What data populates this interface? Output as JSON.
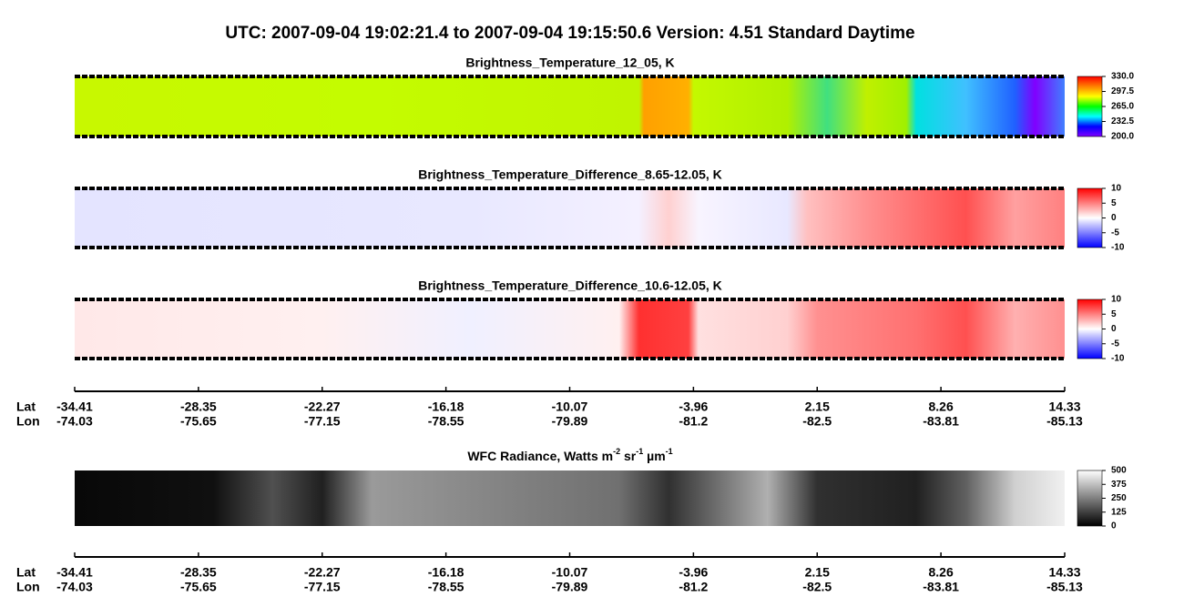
{
  "title": "UTC:  2007-09-04   19:02:21.4  to  2007-09-04   19:15:50.6    Version: 4.51  Standard Daytime",
  "chart_data": [
    {
      "type": "heatmap",
      "title": "Brightness_Temperature_12_05, K",
      "clim": [
        200,
        330
      ],
      "cticks": [
        {
          "value": 330,
          "label": "330.0"
        },
        297.5,
        {
          "value": 265,
          "label": "265.0"
        },
        232.5,
        {
          "value": 200,
          "label": "200.0"
        }
      ],
      "colormap": [
        "#8000ff",
        "#0000ff",
        "#00ffff",
        "#00ff00",
        "#ffff00",
        "#ff8000",
        "#ff0000"
      ]
    },
    {
      "type": "heatmap",
      "title": "Brightness_Temperature_Difference_8.65-12.05, K",
      "clim": [
        -10,
        10
      ],
      "cticks": [
        10,
        5,
        0,
        -5,
        -10
      ],
      "colormap": [
        "#0000ff",
        "#ffffff",
        "#ff0000"
      ]
    },
    {
      "type": "heatmap",
      "title": "Brightness_Temperature_Difference_10.6-12.05, K",
      "clim": [
        -10,
        10
      ],
      "cticks": [
        10,
        5,
        0,
        -5,
        -10
      ],
      "colormap": [
        "#0000ff",
        "#ffffff",
        "#ff0000"
      ]
    },
    {
      "type": "heatmap",
      "title_parts": [
        "WFC Radiance, Watts m",
        "-2",
        " sr",
        "-1",
        " µm",
        "-1"
      ],
      "clim": [
        0,
        500
      ],
      "cticks": [
        500,
        375,
        250,
        125,
        0
      ],
      "colormap": [
        "#000000",
        "#ffffff"
      ]
    }
  ],
  "axes": [
    {
      "rows": [
        {
          "label": "Lat",
          "ticks": [
            -34.41,
            -28.35,
            -22.27,
            -16.18,
            -10.07,
            -3.96,
            2.15,
            8.26,
            14.33
          ]
        },
        {
          "label": "Lon",
          "ticks": [
            -74.03,
            -75.65,
            -77.15,
            -78.55,
            -79.89,
            -81.2,
            -82.5,
            -83.81,
            -85.13
          ]
        }
      ]
    },
    {
      "rows": [
        {
          "label": "Lat",
          "ticks": [
            -34.41,
            -28.35,
            -22.27,
            -16.18,
            -10.07,
            -3.96,
            2.15,
            8.26,
            14.33
          ]
        },
        {
          "label": "Lon",
          "ticks": [
            -74.03,
            -75.65,
            -77.15,
            -78.55,
            -79.89,
            -81.2,
            -82.5,
            -83.81,
            -85.13
          ]
        }
      ]
    }
  ]
}
